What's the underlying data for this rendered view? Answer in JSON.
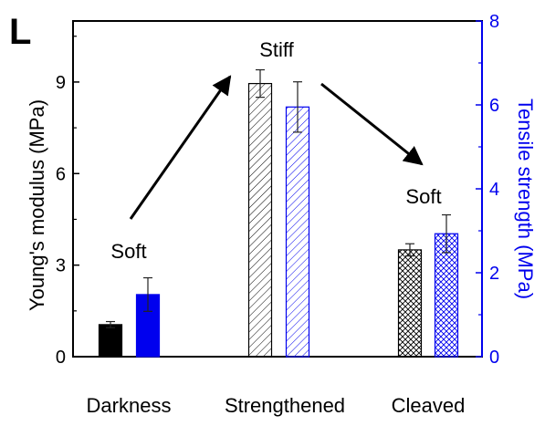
{
  "chart_data": {
    "type": "bar",
    "panel_label": "L",
    "categories": [
      "Darkness",
      "Strengthened",
      "Cleaved"
    ],
    "y_left": {
      "label": "Young's modulus (MPa)",
      "ylim": [
        0,
        11
      ],
      "ticks": [
        0,
        3,
        6,
        9
      ],
      "color": "#000000"
    },
    "y_right": {
      "label": "Tensile strength (MPa)",
      "ylim": [
        0,
        8
      ],
      "ticks": [
        0,
        2,
        4,
        6,
        8
      ],
      "color": "#0000ee"
    },
    "series": [
      {
        "axis": "left",
        "values": [
          1.05,
          8.95,
          3.5
        ],
        "errors": [
          0.1,
          0.45,
          0.2
        ]
      },
      {
        "axis": "right",
        "values": [
          1.48,
          5.95,
          2.93
        ],
        "errors": [
          0.4,
          0.6,
          0.45
        ]
      }
    ],
    "annotations": [
      "Soft",
      "Stiff",
      "Soft"
    ],
    "grid": false
  }
}
